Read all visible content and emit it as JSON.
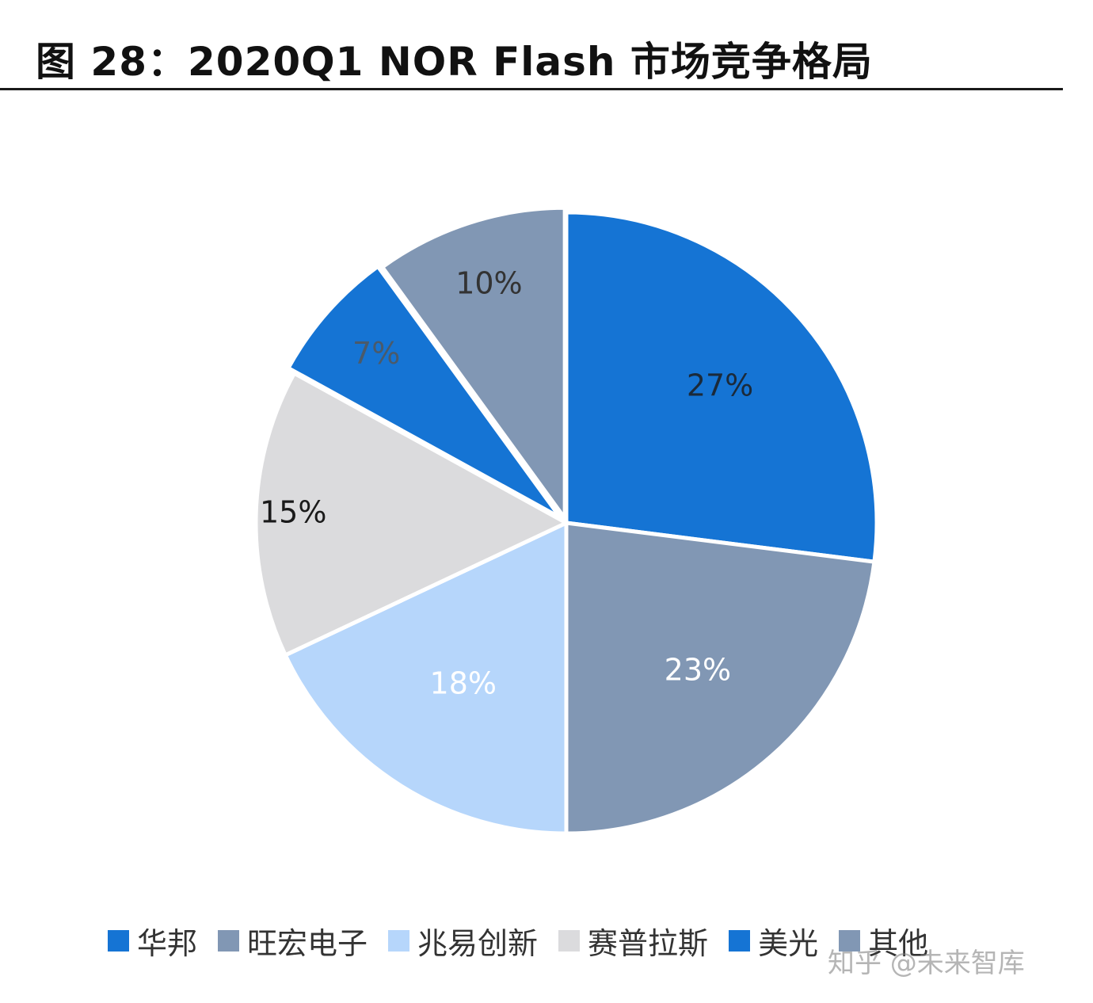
{
  "title": "图 28：2020Q1 NOR Flash 市场竞争格局",
  "watermark": "知乎 @未来智库",
  "chart_data": {
    "type": "pie",
    "title": "图 28：2020Q1 NOR Flash 市场竞争格局",
    "legend_position": "bottom",
    "slices": [
      {
        "name": "华邦",
        "value": 27,
        "label": "27%",
        "color": "#1574d4",
        "label_color": "#1b2a3a"
      },
      {
        "name": "旺宏电子",
        "value": 23,
        "label": "23%",
        "color": "#8197b4",
        "label_color": "#ffffff"
      },
      {
        "name": "兆易创新",
        "value": 18,
        "label": "18%",
        "color": "#b6d6fb",
        "label_color": "#ffffff"
      },
      {
        "name": "赛普拉斯",
        "value": 15,
        "label": "15%",
        "color": "#dbdbdd",
        "label_color": "#1a1a1a"
      },
      {
        "name": "美光",
        "value": 7,
        "label": "7%",
        "color": "#1574d4",
        "label_color": "#4a5a6a"
      },
      {
        "name": "其他",
        "value": 10,
        "label": "10%",
        "color": "#8197b4",
        "label_color": "#333333"
      }
    ]
  }
}
